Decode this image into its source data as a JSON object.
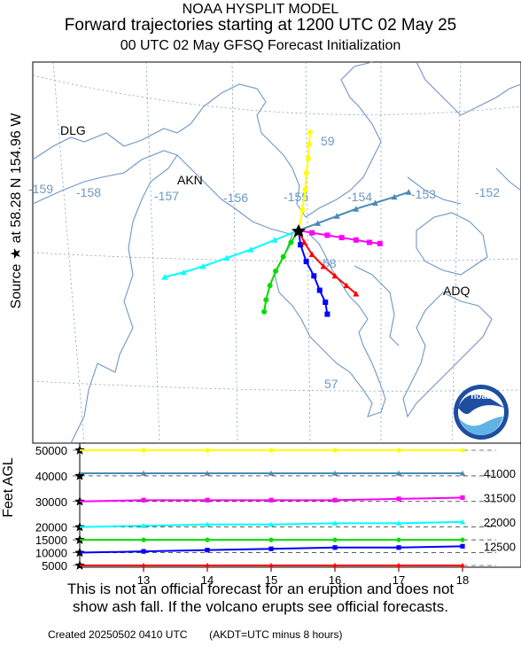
{
  "header": {
    "line1": "NOAA HYSPLIT MODEL",
    "line2": "Forward trajectories starting at 1200 UTC 02 May 25",
    "line3": "00 UTC 02 May     GFSQ  Forecast Initialization"
  },
  "side_label": "Source ★  at   58.28 N  154.96 W",
  "map": {
    "place_labels": [
      "DLG",
      "AKN",
      "ADQ"
    ],
    "longitude_labels": [
      "-159",
      "-158",
      "-157",
      "-156",
      "-155",
      "-154",
      "-153",
      "-152"
    ],
    "latitude_labels": [
      "59",
      "58",
      "57"
    ],
    "colors": {
      "coast": "#6d97c5",
      "grid": "#6d97c5"
    },
    "logo_text": "noaa"
  },
  "height_panel": {
    "ylabel": "Feet AGL",
    "left_ticks": [
      "50000",
      "40000",
      "30000",
      "20000",
      "15000",
      "10000",
      "5000"
    ],
    "right_ticks": [
      "41000",
      "31500",
      "22000",
      "12500"
    ],
    "x_ticks": [
      "13",
      "14",
      "15",
      "16",
      "17",
      "18"
    ]
  },
  "chart_data": {
    "type": "line",
    "x_unit": "hour (UTC day offset, 02 May)",
    "x": [
      12,
      13,
      14,
      15,
      16,
      17,
      18
    ],
    "ylabel": "Feet AGL",
    "series": [
      {
        "color": "#ffff00",
        "marker": "circle",
        "heights_ft": [
          50000,
          50000,
          50000,
          50000,
          50000,
          50000,
          50000
        ]
      },
      {
        "color": "#4a8ab5",
        "marker": "triangle",
        "heights_ft": [
          41000,
          41000,
          41000,
          41000,
          41000,
          41000,
          41000
        ]
      },
      {
        "color": "#ff00ff",
        "marker": "square",
        "heights_ft": [
          30000,
          30500,
          30500,
          30500,
          30500,
          31000,
          31500
        ]
      },
      {
        "color": "#00ffff",
        "marker": "triangle",
        "heights_ft": [
          20000,
          20500,
          21000,
          21000,
          21500,
          21500,
          22000
        ]
      },
      {
        "color": "#00dd00",
        "marker": "circle",
        "heights_ft": [
          15000,
          15000,
          15000,
          15000,
          15000,
          15000,
          15000
        ]
      },
      {
        "color": "#0000ff",
        "marker": "square",
        "heights_ft": [
          10000,
          10500,
          11000,
          11500,
          12000,
          12000,
          12500
        ]
      },
      {
        "color": "#ff0000",
        "marker": "triangle",
        "heights_ft": [
          5000,
          5000,
          5000,
          5000,
          5000,
          5000,
          5000
        ]
      }
    ],
    "trajectories": [
      {
        "color": "#ffff00",
        "lon": [
          -155.0,
          -154.96,
          -154.93,
          -154.92,
          -154.9,
          -154.89,
          -154.88
        ],
        "lat": [
          58.28,
          58.45,
          58.62,
          58.76,
          58.88,
          59.0,
          59.1
        ]
      },
      {
        "color": "#4a8ab5",
        "lon": [
          -155.0,
          -154.8,
          -154.6,
          -154.4,
          -154.2,
          -154.0,
          -153.85
        ],
        "lat": [
          58.28,
          58.34,
          58.4,
          58.46,
          58.51,
          58.56,
          58.6
        ]
      },
      {
        "color": "#ff00ff",
        "lon": [
          -155.0,
          -154.86,
          -154.7,
          -154.55,
          -154.4,
          -154.26,
          -154.15
        ],
        "lat": [
          58.28,
          58.26,
          58.24,
          58.22,
          58.2,
          58.18,
          58.17
        ]
      },
      {
        "color": "#00ffff",
        "lon": [
          -155.0,
          -155.25,
          -155.5,
          -155.75,
          -156.0,
          -156.2,
          -156.4
        ],
        "lat": [
          58.28,
          58.2,
          58.12,
          58.05,
          57.98,
          57.93,
          57.89
        ]
      },
      {
        "color": "#00dd00",
        "lon": [
          -155.0,
          -155.08,
          -155.16,
          -155.24,
          -155.3,
          -155.34,
          -155.36
        ],
        "lat": [
          58.28,
          58.18,
          58.06,
          57.94,
          57.82,
          57.7,
          57.6
        ]
      },
      {
        "color": "#0000ff",
        "lon": [
          -155.0,
          -154.98,
          -154.92,
          -154.84,
          -154.78,
          -154.72,
          -154.7
        ],
        "lat": [
          58.28,
          58.16,
          58.02,
          57.9,
          57.78,
          57.68,
          57.58
        ]
      },
      {
        "color": "#ff0000",
        "lon": [
          -155.0,
          -154.94,
          -154.86,
          -154.74,
          -154.62,
          -154.5,
          -154.4
        ],
        "lat": [
          58.28,
          58.18,
          58.08,
          57.98,
          57.9,
          57.82,
          57.75
        ]
      }
    ]
  },
  "disclaimer": {
    "line1": "This is not an official forecast for an eruption and does not",
    "line2": "show ash fall. If the volcano erupts see official forecasts."
  },
  "footer": {
    "created": "Created 20250502 0410 UTC",
    "note": "(AKDT=UTC minus 8 hours)"
  }
}
